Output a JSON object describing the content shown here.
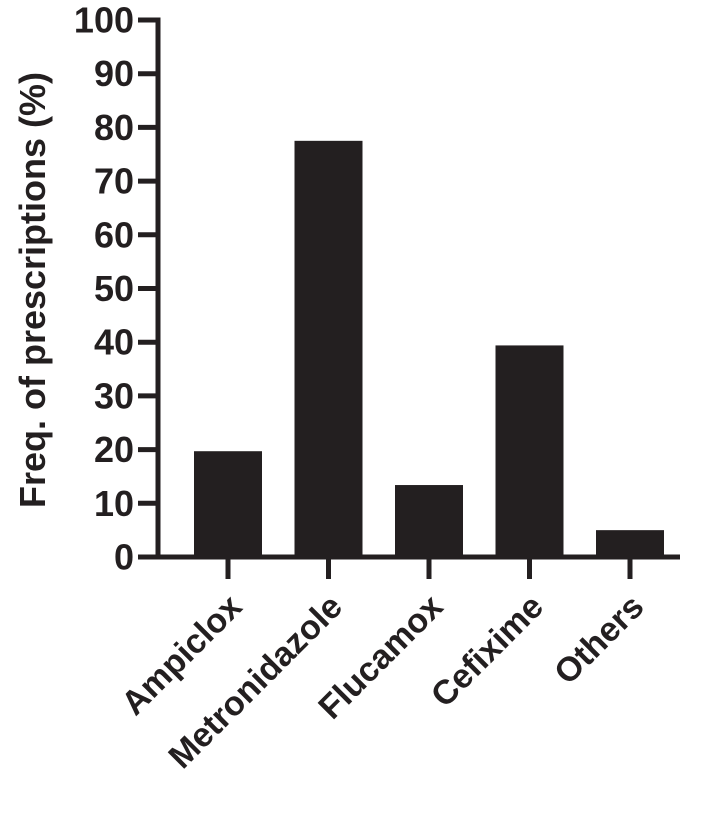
{
  "chart_data": {
    "type": "bar",
    "categories": [
      "Ampiclox",
      "Metronidazole",
      "Flucamox",
      "Cefixime",
      "Others"
    ],
    "values": [
      19.7,
      77.5,
      13.4,
      39.4,
      5.0
    ],
    "title": "",
    "xlabel": "",
    "ylabel": "Freq. of prescriptions (%)",
    "ylim": [
      0,
      100
    ],
    "yticks": [
      0,
      10,
      20,
      30,
      40,
      50,
      60,
      70,
      80,
      90,
      100
    ],
    "grid": false,
    "legend": "none",
    "bar_color": "#231f20",
    "axis_color": "#231f20"
  }
}
